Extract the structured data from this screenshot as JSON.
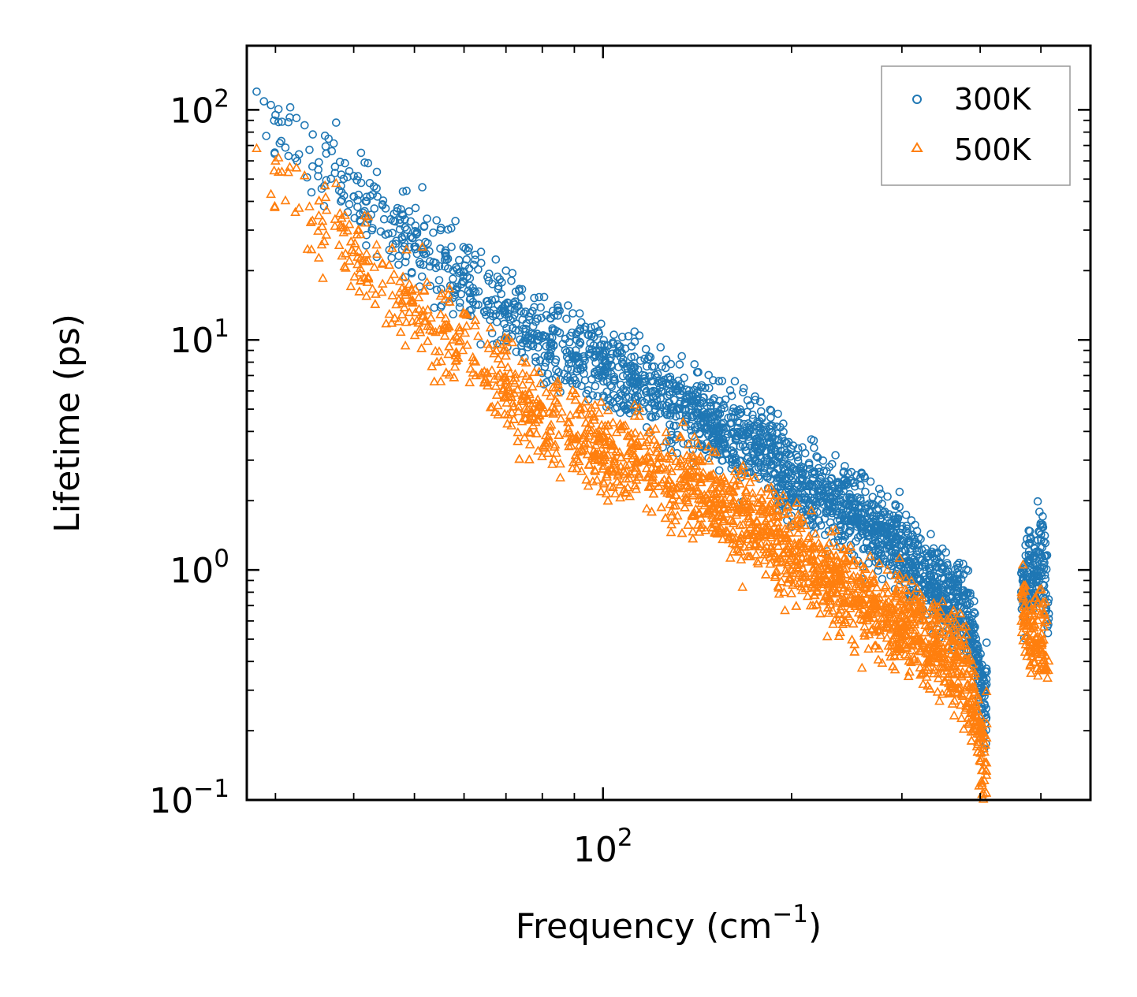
{
  "chart_data": {
    "type": "scatter",
    "xscale": "log",
    "yscale": "log",
    "xlim": [
      27,
      600
    ],
    "ylim": [
      0.1,
      190
    ],
    "xlabel": "Frequency (cm",
    "xlabel_sup": "−1",
    "xlabel_close": ")",
    "ylabel": "Lifetime (ps)",
    "xticks": [
      {
        "value": 100,
        "base": "10",
        "exp": "2"
      }
    ],
    "yticks": [
      {
        "value": 0.1,
        "base": "10",
        "exp": "−1"
      },
      {
        "value": 1,
        "base": "10",
        "exp": "0"
      },
      {
        "value": 10,
        "base": "10",
        "exp": "1"
      },
      {
        "value": 100,
        "base": "10",
        "exp": "2"
      }
    ],
    "legend_position": "top-right",
    "series": [
      {
        "name": "300K",
        "color": "#1f77b4",
        "marker": "circle",
        "anchors_x": [
          28,
          30,
          33,
          38,
          45,
          55,
          65,
          80,
          100,
          120,
          140,
          160,
          180,
          200,
          230,
          260,
          290,
          320,
          350,
          380,
          400,
          405,
          470,
          480,
          490,
          500,
          510,
          515
        ],
        "anchors_y": [
          110,
          80,
          65,
          48,
          33,
          22,
          15,
          10,
          8,
          6,
          5,
          4,
          3.5,
          2.5,
          2,
          1.7,
          1.3,
          1.0,
          0.8,
          0.7,
          0.35,
          0.25,
          0.85,
          1.1,
          0.9,
          1.4,
          0.8,
          0.6
        ],
        "gaps": [
          [
            410,
            465
          ]
        ],
        "outliers": [
          [
            28,
            120
          ],
          [
            29.5,
            105
          ],
          [
            29,
            77
          ],
          [
            30,
            95
          ],
          [
            37.5,
            88
          ],
          [
            70,
            20
          ],
          [
            34,
            67
          ],
          [
            40,
            42
          ]
        ]
      },
      {
        "name": "500K",
        "color": "#ff7f0e",
        "marker": "triangle",
        "anchors_x": [
          28,
          30,
          33,
          38,
          45,
          55,
          65,
          80,
          100,
          120,
          140,
          160,
          180,
          200,
          230,
          260,
          290,
          320,
          350,
          380,
          400,
          405,
          470,
          480,
          490,
          500,
          510,
          515
        ],
        "anchors_y": [
          65,
          48,
          38,
          28,
          18,
          11,
          7.5,
          4.5,
          3.5,
          2.8,
          2.3,
          1.9,
          1.5,
          1.2,
          0.9,
          0.75,
          0.6,
          0.55,
          0.45,
          0.35,
          0.18,
          0.14,
          0.7,
          0.5,
          0.55,
          0.55,
          0.45,
          0.4
        ],
        "gaps": [
          [
            410,
            465
          ]
        ],
        "outliers": [
          [
            28,
            68
          ],
          [
            30,
            60
          ],
          [
            29.5,
            43
          ],
          [
            37.5,
            48
          ],
          [
            34,
            38
          ],
          [
            40,
            24
          ],
          [
            60,
            13
          ]
        ]
      }
    ]
  }
}
